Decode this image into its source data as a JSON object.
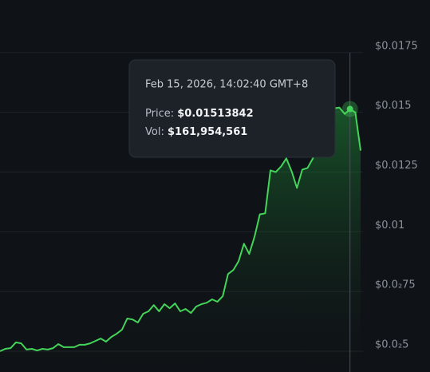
{
  "chart_data": {
    "type": "line",
    "color": "#44d45a",
    "grid": true,
    "values": [
      0.005,
      0.0051,
      0.00513,
      0.00537,
      0.00533,
      0.00507,
      0.0051,
      0.00503,
      0.0051,
      0.00507,
      0.00513,
      0.0053,
      0.00517,
      0.00517,
      0.00517,
      0.00527,
      0.00527,
      0.00533,
      0.00543,
      0.00553,
      0.0054,
      0.0056,
      0.00573,
      0.0059,
      0.00637,
      0.00633,
      0.0062,
      0.00657,
      0.00667,
      0.00693,
      0.00667,
      0.00697,
      0.0068,
      0.007,
      0.00667,
      0.00677,
      0.0066,
      0.00687,
      0.00697,
      0.00703,
      0.00717,
      0.00707,
      0.0073,
      0.00823,
      0.0084,
      0.00877,
      0.0095,
      0.00907,
      0.0098,
      0.01073,
      0.01077,
      0.01257,
      0.0125,
      0.01273,
      0.01307,
      0.01253,
      0.01183,
      0.0126,
      0.01267,
      0.01307,
      0.01367,
      0.0144,
      0.01473,
      0.01517,
      0.0152,
      0.01493,
      0.01513,
      0.015,
      0.0134
    ],
    "ylim": [
      0.00413,
      0.0197
    ],
    "yticks": [
      {
        "value": 0.0175,
        "label": "$0.0175"
      },
      {
        "value": 0.015,
        "label": "$0.015"
      },
      {
        "value": 0.0125,
        "label": "$0.0125"
      },
      {
        "value": 0.01,
        "label": "$0.01"
      },
      {
        "value": 0.0075,
        "label": "$0.0₂75"
      },
      {
        "value": 0.005,
        "label": "$0.0₂5"
      }
    ],
    "tooltip": {
      "date": "Feb 15, 2026, 14:02:40 GMT+8",
      "price_label": "Price:",
      "price": {
        "value": 0.01513842,
        "label": "$0.01513842"
      },
      "vol_label": "Vol:",
      "vol": {
        "value": 161954561,
        "label": "$161,954,561"
      }
    }
  }
}
